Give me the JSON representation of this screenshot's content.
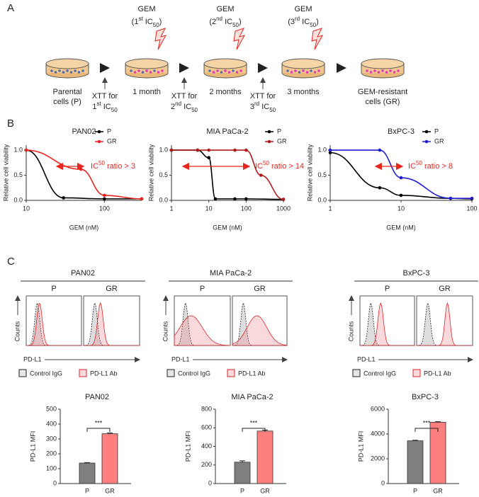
{
  "panels": [
    "A",
    "B",
    "C"
  ],
  "schematic": {
    "stages": [
      [
        "Parental",
        "cells (P)"
      ],
      [
        "1 month"
      ],
      [
        "2 months"
      ],
      [
        "3 months"
      ],
      [
        "GEM-resistant",
        "cells (GR)"
      ]
    ],
    "treatments": [
      {
        "drug": "GEM",
        "dose": [
          "(1",
          "st",
          " IC",
          "50",
          ")"
        ]
      },
      {
        "drug": "GEM",
        "dose": [
          "(2",
          "nd",
          " IC",
          "50",
          ")"
        ]
      },
      {
        "drug": "GEM",
        "dose": [
          "(3",
          "rd",
          " IC",
          "50",
          ")"
        ]
      }
    ],
    "assays": [
      {
        "method": "XTT for",
        "target": [
          "1",
          "st",
          " IC",
          "50"
        ]
      },
      {
        "method": "XTT for",
        "target": [
          "2",
          "nd",
          " IC",
          "50"
        ]
      },
      {
        "method": "XTT for",
        "target": [
          "3",
          "rd",
          " IC",
          "50"
        ]
      }
    ]
  },
  "flow": {
    "titles": [
      "PAN02",
      "MIA PaCa-2",
      "BxPC-3"
    ],
    "groups": [
      "P",
      "GR"
    ],
    "y_label": "Counts",
    "x_label": "PD-L1",
    "legend": [
      "Control IgG",
      "PD-L1 Ab"
    ]
  },
  "chart_data": [
    {
      "type": "line",
      "title": "PAN02",
      "xlabel": "GEM (nM)",
      "ylabel": "Relative cell viability",
      "xscale": "log",
      "xlim": [
        10,
        300
      ],
      "xticks": [
        10,
        100
      ],
      "ylim": [
        0,
        1.1
      ],
      "yticks": [
        {
          "value": 0,
          "label": "0.0"
        },
        {
          "value": 0.5,
          "label": "0.5"
        },
        {
          "value": 1,
          "label": "1.0"
        }
      ],
      "series": [
        {
          "name": "P",
          "color": "#000000",
          "x": [
            10,
            30,
            100,
            300
          ],
          "values": [
            1.0,
            0.05,
            0.03,
            0.03
          ]
        },
        {
          "name": "GR",
          "color": "#e8251f",
          "x": [
            10,
            50,
            100,
            300
          ],
          "values": [
            1.0,
            0.62,
            0.1,
            0.03
          ]
        }
      ],
      "annotation": [
        "IC",
        "50",
        " ratio > 3"
      ],
      "annotation_color": "#e8251f"
    },
    {
      "type": "line",
      "title": "MIA PaCa-2",
      "xlabel": "GEM (nM)",
      "ylabel": "Relative cell viability",
      "xscale": "log",
      "xlim": [
        1,
        1000
      ],
      "xticks": [
        1,
        10,
        100,
        1000
      ],
      "ylim": [
        0,
        1.1
      ],
      "yticks": [
        {
          "value": 0,
          "label": "0.0"
        },
        {
          "value": 0.5,
          "label": "0.5"
        },
        {
          "value": 1,
          "label": "1.0"
        }
      ],
      "series": [
        {
          "name": "P",
          "color": "#000000",
          "x": [
            1,
            5,
            10,
            15,
            50,
            100,
            1000
          ],
          "values": [
            1.0,
            1.0,
            0.85,
            0.03,
            0.03,
            0.03,
            0.02
          ]
        },
        {
          "name": "GR",
          "color": "#b01c1c",
          "x": [
            1,
            5,
            10,
            50,
            100,
            250,
            1000
          ],
          "values": [
            1.0,
            1.0,
            1.0,
            1.0,
            1.0,
            0.5,
            0.02
          ]
        }
      ],
      "annotation": [
        "IC",
        "50",
        " ratio > 14"
      ],
      "annotation_color": "#e8251f"
    },
    {
      "type": "line",
      "title": "BxPC-3",
      "xlabel": "GEM (nM)",
      "ylabel": "Relative cell viability",
      "xscale": "log",
      "xlim": [
        1,
        100
      ],
      "xticks": [
        1,
        10,
        100
      ],
      "ylim": [
        0,
        1.1
      ],
      "yticks": [
        {
          "value": 0,
          "label": "0.0"
        },
        {
          "value": 0.5,
          "label": "0.5"
        },
        {
          "value": 1,
          "label": "1.0"
        }
      ],
      "series": [
        {
          "name": "P",
          "color": "#000000",
          "x": [
            1,
            5,
            10,
            50,
            100
          ],
          "values": [
            0.95,
            0.25,
            0.1,
            0.04,
            0.03
          ]
        },
        {
          "name": "GR",
          "color": "#1f1fd0",
          "x": [
            1,
            5,
            10,
            50,
            100
          ],
          "values": [
            1.0,
            1.0,
            0.45,
            0.04,
            0.04
          ]
        }
      ],
      "annotation": [
        "IC",
        "50",
        " ratio > 8"
      ],
      "annotation_color": "#e8251f"
    },
    {
      "type": "bar",
      "title": "PAN02",
      "ylabel": "PD-L1 MFI",
      "categories": [
        "P",
        "GR"
      ],
      "values": [
        138,
        335
      ],
      "errors": [
        3,
        5
      ],
      "colors": [
        "#7f7f7f",
        "#ff7f7f"
      ],
      "ylim": [
        0,
        500
      ],
      "yticks": [
        0,
        100,
        200,
        300,
        400,
        500
      ],
      "annotation": "***"
    },
    {
      "type": "bar",
      "title": "MIA PaCa-2",
      "ylabel": "PD-L1 MFI",
      "categories": [
        "P",
        "GR"
      ],
      "values": [
        230,
        565
      ],
      "errors": [
        15,
        10
      ],
      "colors": [
        "#7f7f7f",
        "#ff7f7f"
      ],
      "ylim": [
        0,
        800
      ],
      "yticks": [
        0,
        200,
        400,
        600,
        800
      ],
      "annotation": "***"
    },
    {
      "type": "bar",
      "title": "BxPC-3",
      "ylabel": "PD-L1 MFI",
      "categories": [
        "P",
        "GR"
      ],
      "values": [
        3450,
        4950
      ],
      "errors": [
        40,
        40
      ],
      "colors": [
        "#7f7f7f",
        "#ff7f7f"
      ],
      "ylim": [
        0,
        6000
      ],
      "yticks": [
        0,
        2000,
        4000,
        6000
      ],
      "annotation": "***"
    }
  ]
}
